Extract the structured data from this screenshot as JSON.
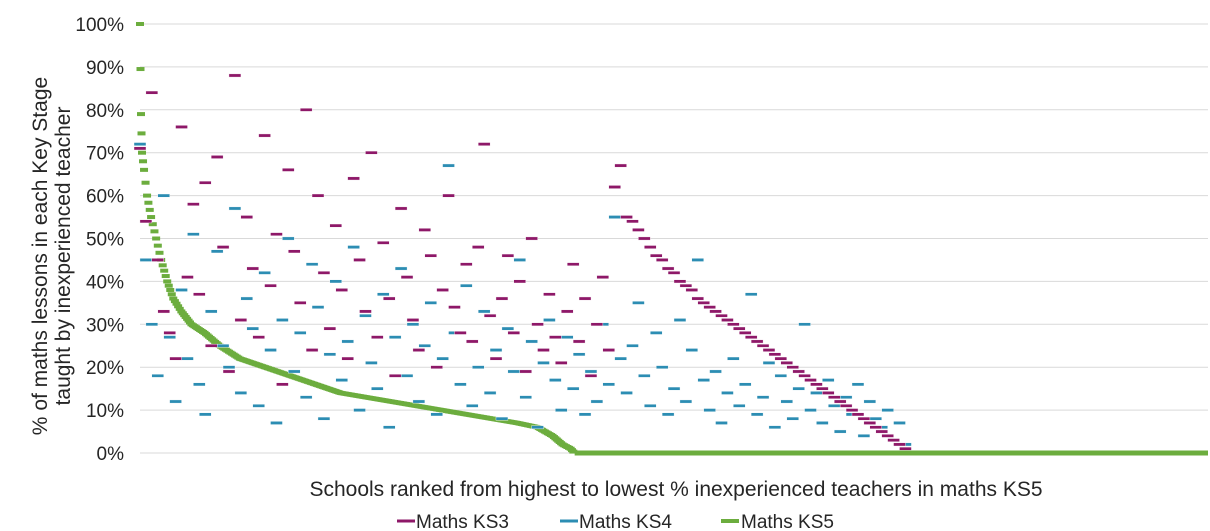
{
  "chart_data": {
    "type": "scatter",
    "title": "",
    "xlabel": "Schools ranked from highest to lowest % inexperienced teachers in maths KS5",
    "ylabel_lines": [
      "% of maths lessons in each Key Stage",
      "taught by inexperienced teacher"
    ],
    "ylim": [
      0,
      100
    ],
    "y_ticks": [
      "0%",
      "10%",
      "20%",
      "30%",
      "40%",
      "50%",
      "60%",
      "70%",
      "80%",
      "90%",
      "100%"
    ],
    "y_tick_values": [
      0,
      10,
      20,
      30,
      40,
      50,
      60,
      70,
      80,
      90,
      100
    ],
    "x_tick_labels": "none",
    "grid": true,
    "legend_position": "bottom",
    "marker": "dash",
    "series": [
      {
        "name": "Maths KS3",
        "color": "#8e1868",
        "x_range": [
          1,
          760
        ],
        "description_of_shape": "scattered values for schools 1-430; declining curve from 55% to 1% for schools 430-760",
        "values_sampled_every_10_ranks": [
          71,
          54,
          84,
          45,
          33,
          28,
          22,
          76,
          41,
          58,
          37,
          63,
          25,
          69,
          48,
          19,
          88,
          31,
          55,
          43,
          27,
          74,
          39,
          51,
          16,
          66,
          47,
          35,
          80,
          24,
          60,
          42,
          29,
          53,
          38,
          22,
          64,
          45,
          33,
          70,
          27,
          49,
          36,
          18,
          57,
          41,
          31,
          24,
          52,
          46,
          20,
          38,
          60,
          34,
          28,
          44,
          26,
          48,
          72,
          32,
          22,
          36,
          46,
          28,
          40,
          19,
          50,
          30,
          24,
          37,
          27,
          21,
          33,
          44,
          26,
          36,
          18,
          30,
          41,
          24,
          62,
          67,
          55,
          54,
          52,
          50,
          48,
          46,
          45,
          43,
          42,
          40,
          39,
          38,
          36,
          35,
          34,
          33,
          32,
          31,
          30,
          29,
          28,
          27,
          26,
          25,
          24,
          23,
          22,
          21,
          20,
          19,
          18,
          17,
          16,
          15,
          14,
          13,
          12,
          11,
          10,
          9,
          8,
          7,
          6,
          5,
          4,
          3,
          2,
          1
        ]
      },
      {
        "name": "Maths KS4",
        "color": "#2c8db3",
        "x_range": [
          1,
          760
        ],
        "description_of_shape": "scattered values mostly between 0% and 60% across schools 1-760",
        "values_sampled_every_10_ranks": [
          72,
          45,
          30,
          18,
          60,
          27,
          12,
          38,
          22,
          51,
          16,
          9,
          33,
          47,
          25,
          20,
          57,
          14,
          36,
          29,
          11,
          42,
          24,
          7,
          31,
          50,
          19,
          28,
          13,
          44,
          34,
          8,
          23,
          40,
          17,
          26,
          48,
          10,
          32,
          21,
          15,
          37,
          6,
          27,
          43,
          18,
          30,
          12,
          25,
          35,
          9,
          22,
          67,
          28,
          16,
          39,
          11,
          20,
          33,
          14,
          24,
          8,
          29,
          19,
          45,
          13,
          26,
          6,
          21,
          31,
          17,
          10,
          27,
          15,
          23,
          9,
          19,
          12,
          30,
          16,
          55,
          22,
          14,
          25,
          35,
          18,
          11,
          28,
          20,
          9,
          15,
          31,
          12,
          24,
          45,
          17,
          10,
          19,
          7,
          14,
          22,
          11,
          16,
          37,
          9,
          13,
          21,
          6,
          18,
          12,
          8,
          15,
          30,
          10,
          14,
          7,
          17,
          11,
          5,
          13,
          9,
          16,
          4,
          12,
          8,
          6,
          10,
          3,
          7,
          2
        ]
      },
      {
        "name": "Maths KS5",
        "color": "#6cad3e",
        "x_range": [
          1,
          1060
        ],
        "description_of_shape": "monotonically declining from 100% at rank 1 to 0% around rank 430, then 0% for remaining schools",
        "values": [
          [
            1,
            100
          ],
          [
            2,
            79
          ],
          [
            3,
            70
          ],
          [
            5,
            66
          ],
          [
            8,
            60
          ],
          [
            12,
            55
          ],
          [
            17,
            50
          ],
          [
            22,
            45
          ],
          [
            28,
            40
          ],
          [
            34,
            36
          ],
          [
            42,
            33
          ],
          [
            52,
            30
          ],
          [
            65,
            28
          ],
          [
            80,
            25
          ],
          [
            100,
            22
          ],
          [
            125,
            20
          ],
          [
            150,
            18
          ],
          [
            175,
            16
          ],
          [
            200,
            14
          ],
          [
            225,
            13
          ],
          [
            250,
            12
          ],
          [
            275,
            11
          ],
          [
            300,
            10
          ],
          [
            325,
            9
          ],
          [
            350,
            8
          ],
          [
            375,
            7
          ],
          [
            395,
            6
          ],
          [
            410,
            4
          ],
          [
            420,
            2
          ],
          [
            428,
            1
          ],
          [
            432,
            0
          ],
          [
            1060,
            0
          ]
        ]
      }
    ]
  }
}
